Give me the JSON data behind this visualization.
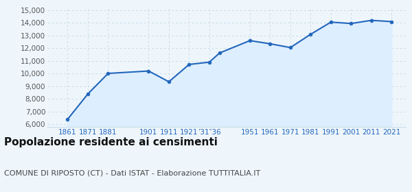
{
  "years": [
    1861,
    1871,
    1881,
    1901,
    1911,
    1921,
    1931,
    1936,
    1951,
    1961,
    1971,
    1981,
    1991,
    2001,
    2011,
    2021
  ],
  "values": [
    6390,
    8390,
    10010,
    10200,
    9350,
    10720,
    10900,
    11620,
    12600,
    12350,
    12050,
    13100,
    14060,
    13950,
    14200,
    14100
  ],
  "ylim": [
    5800,
    15200
  ],
  "yticks": [
    6000,
    7000,
    8000,
    9000,
    10000,
    11000,
    12000,
    13000,
    14000,
    15000
  ],
  "ytick_labels": [
    "6,000",
    "7,000",
    "8,000",
    "9,000",
    "10,000",
    "11,000",
    "12,000",
    "13,000",
    "14,000",
    "15,000"
  ],
  "xtick_positions": [
    1861,
    1871,
    1881,
    1901,
    1911,
    1921,
    1931,
    1951,
    1961,
    1971,
    1981,
    1991,
    2001,
    2011,
    2021
  ],
  "xtick_labels": [
    "1861",
    "1871",
    "1881",
    "1901",
    "1911",
    "1921",
    "’31‶36",
    "1951",
    "1961",
    "1971",
    "1981",
    "1991",
    "2001",
    "2011",
    "2021"
  ],
  "xlim_left": 1851,
  "xlim_right": 2028,
  "line_color": "#2266bb",
  "fill_color": "#ddeeff",
  "marker_color": "#2266bb",
  "grid_color": "#c8dce8",
  "bg_color": "#eef6fc",
  "title": "Popolazione residente ai censimenti",
  "subtitle": "COMUNE DI RIPOSTO (CT) - Dati ISTAT - Elaborazione TUTTITALIA.IT",
  "title_fontsize": 11,
  "subtitle_fontsize": 8,
  "ytick_fontsize": 7.5,
  "xtick_fontsize": 7.5,
  "xtick_color": "#2266bb",
  "ytick_color": "#555555"
}
